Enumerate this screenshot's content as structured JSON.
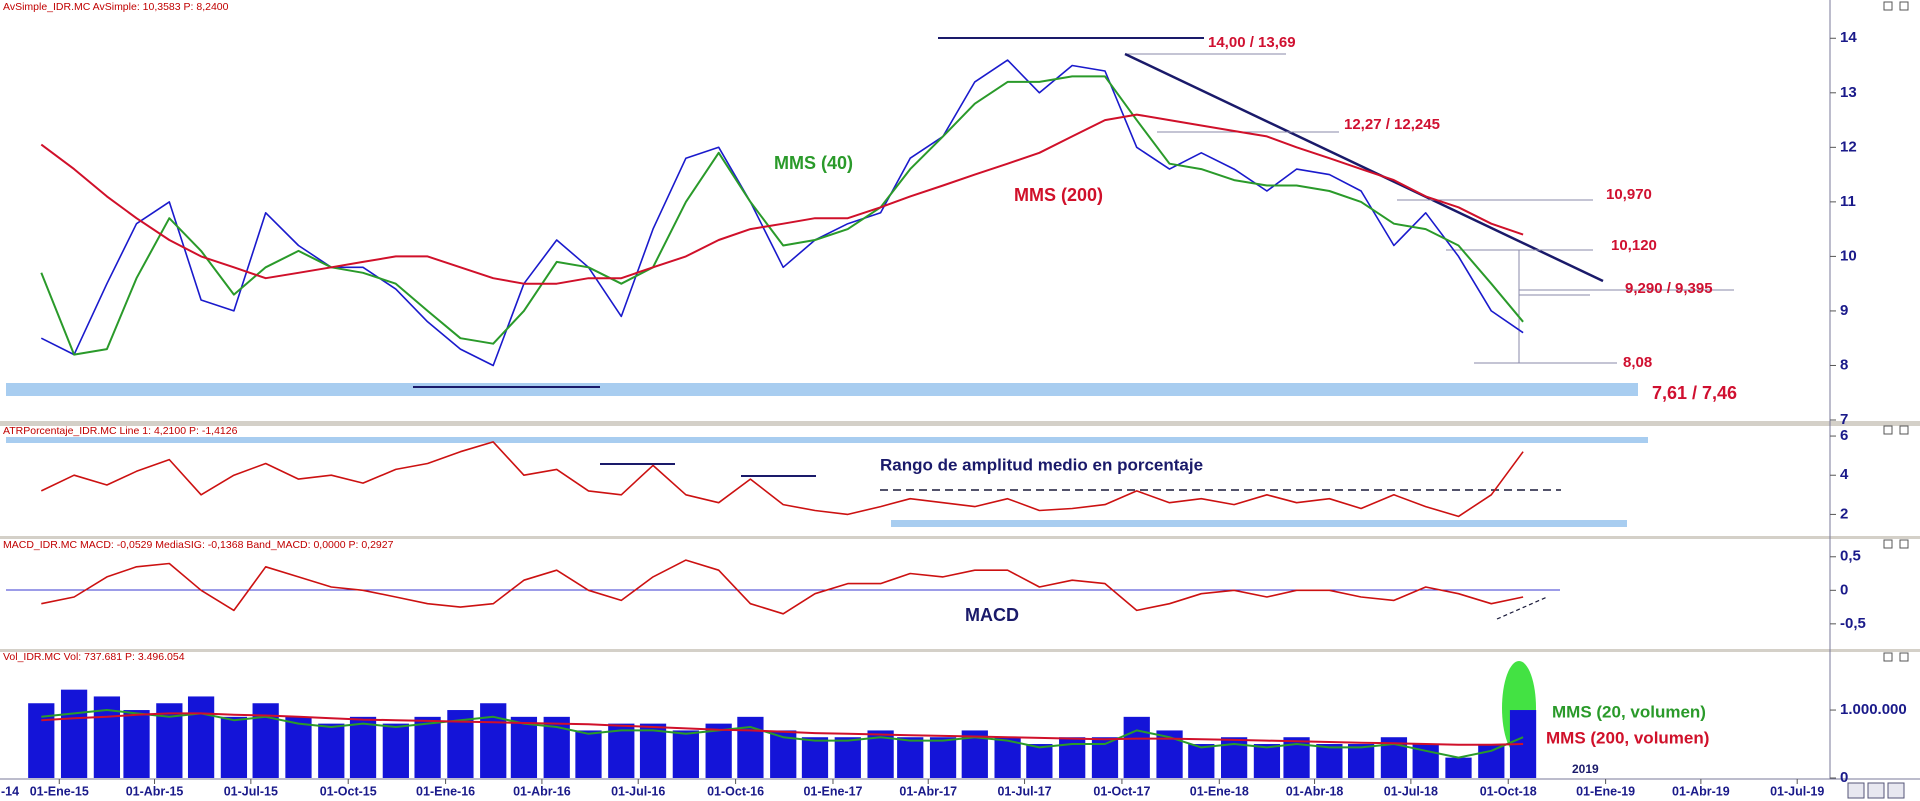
{
  "chart_data": [
    {
      "type": "line",
      "title": "AvSimple_IDR.MC AvSimple: 10,3583 P: 8,2400",
      "color": "#1a1acc",
      "x": [
        "2014-12",
        "2015-01",
        "2015-02",
        "2015-03",
        "2015-04",
        "2015-05",
        "2015-06",
        "2015-07",
        "2015-08",
        "2015-09",
        "2015-10",
        "2015-11",
        "2015-12",
        "2016-01",
        "2016-02",
        "2016-03",
        "2016-04",
        "2016-05",
        "2016-06",
        "2016-07",
        "2016-08",
        "2016-09",
        "2016-10",
        "2016-11",
        "2016-12",
        "2017-01",
        "2017-02",
        "2017-03",
        "2017-04",
        "2017-05",
        "2017-06",
        "2017-07",
        "2017-08",
        "2017-09",
        "2017-10",
        "2017-11",
        "2017-12",
        "2018-01",
        "2018-02",
        "2018-03",
        "2018-04",
        "2018-05",
        "2018-06",
        "2018-07",
        "2018-08",
        "2018-09",
        "2018-10"
      ],
      "values": [
        8.5,
        8.2,
        9.5,
        10.6,
        11.0,
        9.2,
        9.0,
        10.8,
        10.2,
        9.8,
        9.8,
        9.4,
        8.8,
        8.3,
        8.0,
        9.5,
        10.3,
        9.8,
        8.9,
        10.5,
        11.8,
        12.0,
        11.0,
        9.8,
        10.3,
        10.6,
        10.8,
        11.8,
        12.2,
        13.2,
        13.6,
        13.0,
        13.5,
        13.4,
        12.0,
        11.6,
        11.9,
        11.6,
        11.2,
        11.6,
        11.5,
        11.2,
        10.2,
        10.8,
        10.0,
        9.0,
        8.6
      ],
      "series": [
        {
          "name": "MMS (40)",
          "color": "#2a9a2a",
          "values": [
            9.7,
            8.2,
            8.3,
            9.6,
            10.7,
            10.1,
            9.3,
            9.8,
            10.1,
            9.8,
            9.7,
            9.5,
            9.0,
            8.5,
            8.4,
            9.0,
            9.9,
            9.8,
            9.5,
            9.8,
            11.0,
            11.9,
            11.0,
            10.2,
            10.3,
            10.5,
            10.9,
            11.6,
            12.2,
            12.8,
            13.2,
            13.2,
            13.3,
            13.3,
            12.5,
            11.7,
            11.6,
            11.4,
            11.3,
            11.3,
            11.2,
            11.0,
            10.6,
            10.5,
            10.2,
            9.5,
            8.8
          ]
        },
        {
          "name": "MMS (200)",
          "color": "#d0102a",
          "values": [
            12.05,
            11.6,
            11.1,
            10.7,
            10.3,
            10.0,
            9.8,
            9.6,
            9.7,
            9.8,
            9.9,
            10.0,
            10.0,
            9.8,
            9.6,
            9.5,
            9.5,
            9.6,
            9.6,
            9.8,
            10.0,
            10.3,
            10.5,
            10.6,
            10.7,
            10.7,
            10.9,
            11.1,
            11.3,
            11.5,
            11.7,
            11.9,
            12.2,
            12.5,
            12.6,
            12.5,
            12.4,
            12.3,
            12.2,
            12.0,
            11.8,
            11.6,
            11.4,
            11.1,
            10.9,
            10.6,
            10.4
          ]
        }
      ],
      "ylim": [
        7,
        14.5
      ],
      "yticks": [
        7,
        8,
        9,
        10,
        11,
        12,
        13,
        14
      ],
      "annotations": [
        "14,00 / 13,69",
        "12,27 / 12,245",
        "10,970",
        "10,120",
        "9,290 / 9,395",
        "8,08",
        "7,61 / 7,46"
      ]
    },
    {
      "type": "line",
      "title": "ATRPorcentaje_IDR.MC Line 1: 4,2100 P: -1,4126",
      "color": "#cc1111",
      "x": [
        "2014-12",
        "2015-01",
        "2015-02",
        "2015-03",
        "2015-04",
        "2015-05",
        "2015-06",
        "2015-07",
        "2015-08",
        "2015-09",
        "2015-10",
        "2015-11",
        "2015-12",
        "2016-01",
        "2016-02",
        "2016-03",
        "2016-04",
        "2016-05",
        "2016-06",
        "2016-07",
        "2016-08",
        "2016-09",
        "2016-10",
        "2016-11",
        "2016-12",
        "2017-01",
        "2017-02",
        "2017-03",
        "2017-04",
        "2017-05",
        "2017-06",
        "2017-07",
        "2017-08",
        "2017-09",
        "2017-10",
        "2017-11",
        "2017-12",
        "2018-01",
        "2018-02",
        "2018-03",
        "2018-04",
        "2018-05",
        "2018-06",
        "2018-07",
        "2018-08",
        "2018-09",
        "2018-10"
      ],
      "values": [
        3.2,
        4.0,
        3.5,
        4.2,
        4.8,
        3.0,
        4.0,
        4.6,
        3.8,
        4.0,
        3.6,
        4.3,
        4.6,
        5.2,
        5.7,
        4.0,
        4.3,
        3.2,
        3.0,
        4.5,
        3.0,
        2.6,
        3.8,
        2.5,
        2.2,
        2.0,
        2.4,
        2.8,
        2.6,
        2.4,
        2.8,
        2.2,
        2.3,
        2.5,
        3.2,
        2.6,
        2.8,
        2.5,
        3.0,
        2.6,
        2.8,
        2.3,
        3.0,
        2.4,
        1.9,
        3.0,
        5.2
      ],
      "ylim": [
        1,
        6.36
      ],
      "yticks": [
        2,
        4,
        6
      ],
      "annotations": [
        "Rango de amplitud medio en porcentaje"
      ]
    },
    {
      "type": "line",
      "title": "MACD_IDR.MC MACD: -0,0529 MediaSIG: -0,1368 Band_MACD: 0,0000 P: 0,2927",
      "color": "#cc1111",
      "x": [
        "2014-12",
        "2015-01",
        "2015-02",
        "2015-03",
        "2015-04",
        "2015-05",
        "2015-06",
        "2015-07",
        "2015-08",
        "2015-09",
        "2015-10",
        "2015-11",
        "2015-12",
        "2016-01",
        "2016-02",
        "2016-03",
        "2016-04",
        "2016-05",
        "2016-06",
        "2016-07",
        "2016-08",
        "2016-09",
        "2016-10",
        "2016-11",
        "2016-12",
        "2017-01",
        "2017-02",
        "2017-03",
        "2017-04",
        "2017-05",
        "2017-06",
        "2017-07",
        "2017-08",
        "2017-09",
        "2017-10",
        "2017-11",
        "2017-12",
        "2018-01",
        "2018-02",
        "2018-03",
        "2018-04",
        "2018-05",
        "2018-06",
        "2018-07",
        "2018-08",
        "2018-09",
        "2018-10"
      ],
      "values": [
        -0.2,
        -0.1,
        0.2,
        0.35,
        0.4,
        0.0,
        -0.3,
        0.35,
        0.2,
        0.05,
        0.0,
        -0.1,
        -0.2,
        -0.25,
        -0.2,
        0.15,
        0.3,
        0.0,
        -0.15,
        0.2,
        0.45,
        0.3,
        -0.2,
        -0.35,
        -0.05,
        0.1,
        0.1,
        0.25,
        0.2,
        0.3,
        0.3,
        0.05,
        0.15,
        0.1,
        -0.3,
        -0.2,
        -0.05,
        0.0,
        -0.1,
        0.0,
        0.0,
        -0.1,
        -0.15,
        0.05,
        -0.05,
        -0.2,
        -0.1
      ],
      "ylim": [
        -0.86,
        0.75
      ],
      "yticks": [
        {
          "value": 0.5,
          "label": "0,5"
        },
        0,
        {
          "value": -0.5,
          "label": "-0,5"
        }
      ],
      "annotations": [
        "MACD"
      ]
    },
    {
      "type": "bar",
      "title": "Vol_IDR.MC Vol: 737.681 P: 3.496.054",
      "color": "#1414d8",
      "x": [
        "2014-12",
        "2015-01",
        "2015-02",
        "2015-03",
        "2015-04",
        "2015-05",
        "2015-06",
        "2015-07",
        "2015-08",
        "2015-09",
        "2015-10",
        "2015-11",
        "2015-12",
        "2016-01",
        "2016-02",
        "2016-03",
        "2016-04",
        "2016-05",
        "2016-06",
        "2016-07",
        "2016-08",
        "2016-09",
        "2016-10",
        "2016-11",
        "2016-12",
        "2017-01",
        "2017-02",
        "2017-03",
        "2017-04",
        "2017-05",
        "2017-06",
        "2017-07",
        "2017-08",
        "2017-09",
        "2017-10",
        "2017-11",
        "2017-12",
        "2018-01",
        "2018-02",
        "2018-03",
        "2018-04",
        "2018-05",
        "2018-06",
        "2018-07",
        "2018-08",
        "2018-09",
        "2018-10"
      ],
      "values": [
        1100000,
        1300000,
        1200000,
        1000000,
        1100000,
        1200000,
        900000,
        1100000,
        900000,
        800000,
        900000,
        800000,
        900000,
        1000000,
        1100000,
        900000,
        900000,
        700000,
        800000,
        800000,
        700000,
        800000,
        900000,
        700000,
        600000,
        600000,
        700000,
        600000,
        600000,
        700000,
        600000,
        500000,
        600000,
        600000,
        900000,
        700000,
        500000,
        600000,
        500000,
        600000,
        500000,
        500000,
        600000,
        500000,
        300000,
        500000,
        1000000
      ],
      "series": [
        {
          "name": "MMS (20, volumen)",
          "color": "#2a9a2a",
          "values": [
            900000,
            950000,
            1000000,
            950000,
            900000,
            950000,
            850000,
            900000,
            800000,
            750000,
            800000,
            750000,
            800000,
            850000,
            900000,
            800000,
            750000,
            650000,
            700000,
            700000,
            650000,
            700000,
            750000,
            600000,
            550000,
            550000,
            600000,
            550000,
            550000,
            600000,
            550000,
            450000,
            500000,
            500000,
            700000,
            600000,
            450000,
            500000,
            450000,
            500000,
            450000,
            450000,
            500000,
            400000,
            300000,
            400000,
            600000
          ]
        },
        {
          "name": "MMS (200, volumen)",
          "color": "#d0102a",
          "values": [
            850000,
            880000,
            900000,
            930000,
            950000,
            950000,
            930000,
            920000,
            900000,
            880000,
            860000,
            850000,
            840000,
            830000,
            820000,
            810000,
            800000,
            790000,
            770000,
            750000,
            730000,
            710000,
            700000,
            680000,
            660000,
            650000,
            640000,
            630000,
            620000,
            610000,
            600000,
            590000,
            580000,
            570000,
            580000,
            580000,
            570000,
            560000,
            550000,
            540000,
            530000,
            520000,
            510000,
            500000,
            490000,
            490000,
            500000
          ]
        }
      ],
      "ylim": [
        0,
        1810000
      ],
      "yticks": [
        0,
        {
          "value": 1000000,
          "label": "1.000.000"
        }
      ],
      "xlim": [
        "2014-11-06",
        "2019-08-01"
      ],
      "xticks": [
        {
          "value": "2014-10-01",
          "label": "-14"
        },
        {
          "value": "2015-01-01",
          "label": "01-Ene-15"
        },
        {
          "value": "2015-04-01",
          "label": "01-Abr-15"
        },
        {
          "value": "2015-07-01",
          "label": "01-Jul-15"
        },
        {
          "value": "2015-10-01",
          "label": "01-Oct-15"
        },
        {
          "value": "2016-01-01",
          "label": "01-Ene-16"
        },
        {
          "value": "2016-04-01",
          "label": "01-Abr-16"
        },
        {
          "value": "2016-07-01",
          "label": "01-Jul-16"
        },
        {
          "value": "2016-10-01",
          "label": "01-Oct-16"
        },
        {
          "value": "2017-01-01",
          "label": "01-Ene-17"
        },
        {
          "value": "2017-04-01",
          "label": "01-Abr-17"
        },
        {
          "value": "2017-07-01",
          "label": "01-Jul-17"
        },
        {
          "value": "2017-10-01",
          "label": "01-Oct-17"
        },
        {
          "value": "2018-01-01",
          "label": "01-Ene-18"
        },
        {
          "value": "2018-04-01",
          "label": "01-Abr-18"
        },
        {
          "value": "2018-07-01",
          "label": "01-Jul-18"
        },
        {
          "value": "2018-10-01",
          "label": "01-Oct-18"
        },
        {
          "value": "2019-01-01",
          "label": "01-Ene-19"
        },
        {
          "value": "2019-04-01",
          "label": "01-Abr-19"
        },
        {
          "value": "2019-07-01",
          "label": "01-Jul-19"
        }
      ],
      "annotations": [
        "2019"
      ]
    }
  ]
}
